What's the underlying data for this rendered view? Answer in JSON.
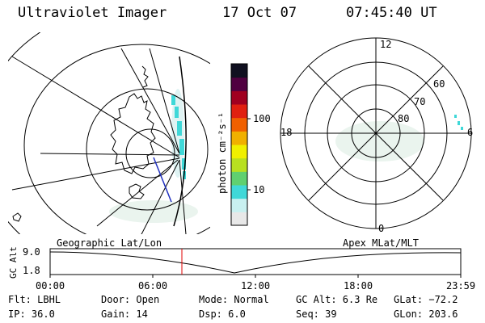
{
  "header": {
    "title": "Ultraviolet Imager",
    "date": "17 Oct 07",
    "time": "07:45:40 UT"
  },
  "colorbar": {
    "unit_label": "photon cm⁻²s⁻¹",
    "tick_100": "100",
    "tick_10": "10",
    "colors": [
      "#e8e8e8",
      "#c8f0f0",
      "#40d8d8",
      "#60d070",
      "#b8e020",
      "#f0f000",
      "#f0b000",
      "#f06000",
      "#e02010",
      "#a00020",
      "#500040",
      "#101020"
    ]
  },
  "polar": {
    "mlt_12": "12",
    "mlt_18": "18",
    "mlt_6": "6",
    "mlt_0": "0",
    "lat_60": "60",
    "lat_70": "70",
    "lat_80": "80"
  },
  "timeline": {
    "y_label": "GC Alt",
    "y_top": "9.0",
    "y_bottom": "1.8",
    "left_title": "Geographic Lat/Lon",
    "right_title": "Apex MLat/MLT",
    "ticks": [
      "00:00",
      "06:00",
      "12:00",
      "18:00",
      "23:59"
    ],
    "marker_color": "#e00000"
  },
  "info": {
    "flt": "Flt: LBHL",
    "ip": "IP: 36.0",
    "door": "Door: Open",
    "gain": "Gain: 14",
    "mode": "Mode: Normal",
    "dsp": "Dsp:    6.0",
    "gc_alt": "GC Alt: 6.3 Re",
    "seq": "Seq: 39",
    "glat": "GLat: −72.2",
    "glon": "GLon: 203.6"
  }
}
